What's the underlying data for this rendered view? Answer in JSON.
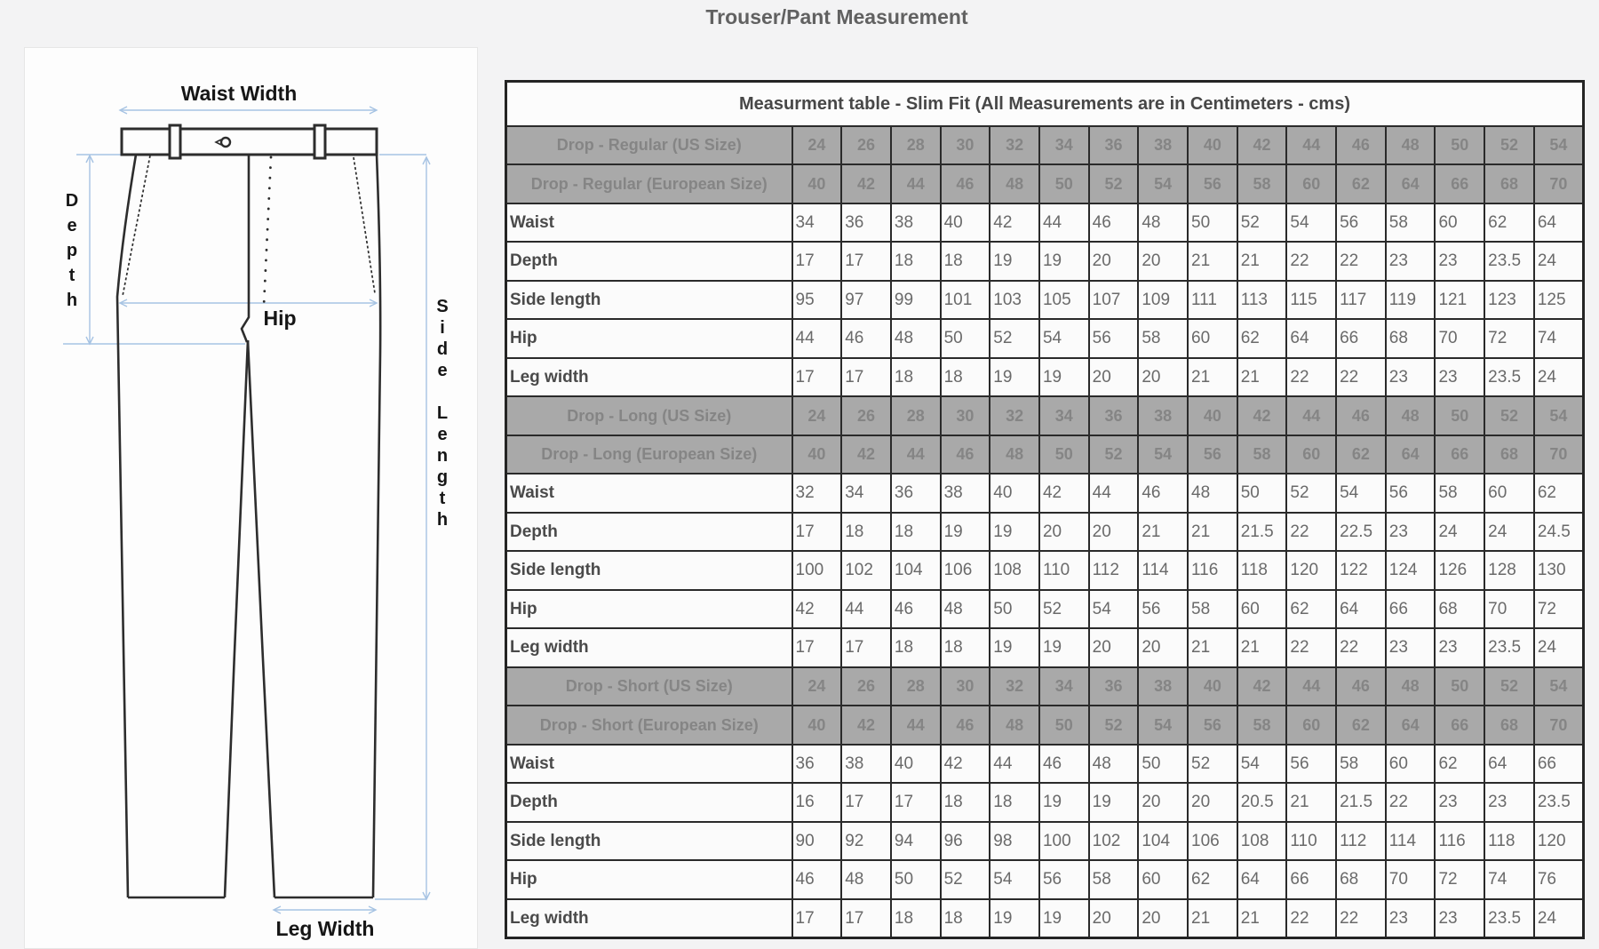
{
  "page": {
    "title": "Trouser/Pant Measurement"
  },
  "diagram": {
    "labels": {
      "waist_width": "Waist Width",
      "depth": "Depth",
      "hip": "Hip",
      "side_length": "Side Length",
      "leg_width": "Leg Width"
    }
  },
  "table": {
    "title": "Measurment table - Slim Fit (All Measurements are in Centimeters - cms)",
    "sections": [
      {
        "us_label": "Drop - Regular (US Size)",
        "eu_label": "Drop - Regular (European Size)",
        "us_sizes": [
          24,
          26,
          28,
          30,
          32,
          34,
          36,
          38,
          40,
          42,
          44,
          46,
          48,
          50,
          52,
          54
        ],
        "eu_sizes": [
          40,
          42,
          44,
          46,
          48,
          50,
          52,
          54,
          56,
          58,
          60,
          62,
          64,
          66,
          68,
          70
        ],
        "rows": [
          {
            "label": "Waist",
            "values": [
              34,
              36,
              38,
              40,
              42,
              44,
              46,
              48,
              50,
              52,
              54,
              56,
              58,
              60,
              62,
              64
            ]
          },
          {
            "label": "Depth",
            "values": [
              17,
              17,
              18,
              18,
              19,
              19,
              20,
              20,
              21,
              21,
              22,
              22,
              23,
              23,
              23.5,
              24
            ]
          },
          {
            "label": "Side length",
            "values": [
              95,
              97,
              99,
              101,
              103,
              105,
              107,
              109,
              111,
              113,
              115,
              117,
              119,
              121,
              123,
              125
            ]
          },
          {
            "label": "Hip",
            "values": [
              44,
              46,
              48,
              50,
              52,
              54,
              56,
              58,
              60,
              62,
              64,
              66,
              68,
              70,
              72,
              74
            ]
          },
          {
            "label": "Leg width",
            "values": [
              17,
              17,
              18,
              18,
              19,
              19,
              20,
              20,
              21,
              21,
              22,
              22,
              23,
              23,
              23.5,
              24
            ]
          }
        ]
      },
      {
        "us_label": "Drop - Long (US Size)",
        "eu_label": "Drop - Long (European Size)",
        "us_sizes": [
          24,
          26,
          28,
          30,
          32,
          34,
          36,
          38,
          40,
          42,
          44,
          46,
          48,
          50,
          52,
          54
        ],
        "eu_sizes": [
          40,
          42,
          44,
          46,
          48,
          50,
          52,
          54,
          56,
          58,
          60,
          62,
          64,
          66,
          68,
          70
        ],
        "rows": [
          {
            "label": "Waist",
            "values": [
              32,
              34,
              36,
              38,
              40,
              42,
              44,
              46,
              48,
              50,
              52,
              54,
              56,
              58,
              60,
              62
            ]
          },
          {
            "label": "Depth",
            "values": [
              17,
              18,
              18,
              19,
              19,
              20,
              20,
              21,
              21,
              21.5,
              22,
              22.5,
              23,
              24,
              24,
              24.5
            ]
          },
          {
            "label": "Side length",
            "values": [
              100,
              102,
              104,
              106,
              108,
              110,
              112,
              114,
              116,
              118,
              120,
              122,
              124,
              126,
              128,
              130
            ]
          },
          {
            "label": "Hip",
            "values": [
              42,
              44,
              46,
              48,
              50,
              52,
              54,
              56,
              58,
              60,
              62,
              64,
              66,
              68,
              70,
              72
            ]
          },
          {
            "label": "Leg width",
            "values": [
              17,
              17,
              18,
              18,
              19,
              19,
              20,
              20,
              21,
              21,
              22,
              22,
              23,
              23,
              23.5,
              24
            ]
          }
        ]
      },
      {
        "us_label": "Drop - Short (US Size)",
        "eu_label": "Drop - Short (European Size)",
        "us_sizes": [
          24,
          26,
          28,
          30,
          32,
          34,
          36,
          38,
          40,
          42,
          44,
          46,
          48,
          50,
          52,
          54
        ],
        "eu_sizes": [
          40,
          42,
          44,
          46,
          48,
          50,
          52,
          54,
          56,
          58,
          60,
          62,
          64,
          66,
          68,
          70
        ],
        "rows": [
          {
            "label": "Waist",
            "values": [
              36,
              38,
              40,
              42,
              44,
              46,
              48,
              50,
              52,
              54,
              56,
              58,
              60,
              62,
              64,
              66
            ]
          },
          {
            "label": "Depth",
            "values": [
              16,
              17,
              17,
              18,
              18,
              19,
              19,
              20,
              20,
              20.5,
              21,
              21.5,
              22,
              23,
              23,
              23.5
            ]
          },
          {
            "label": "Side length",
            "values": [
              90,
              92,
              94,
              96,
              98,
              100,
              102,
              104,
              106,
              108,
              110,
              112,
              114,
              116,
              118,
              120
            ]
          },
          {
            "label": "Hip",
            "values": [
              46,
              48,
              50,
              52,
              54,
              56,
              58,
              60,
              62,
              64,
              66,
              68,
              70,
              72,
              74,
              76
            ]
          },
          {
            "label": "Leg width",
            "values": [
              17,
              17,
              18,
              18,
              19,
              19,
              20,
              20,
              21,
              21,
              22,
              22,
              23,
              23,
              23.5,
              24
            ]
          }
        ]
      }
    ]
  }
}
